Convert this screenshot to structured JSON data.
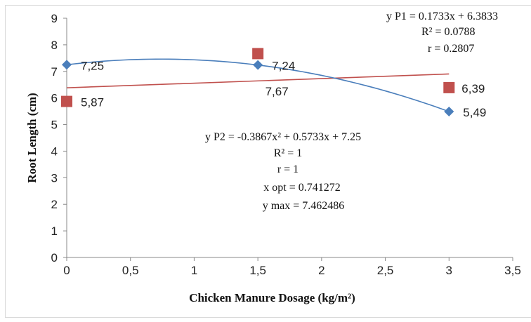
{
  "chart_data": {
    "type": "scatter",
    "xlabel": "Chicken Manure Dosage (kg/m²)",
    "ylabel": "Root Length (cm)",
    "xlim": [
      0,
      3.5
    ],
    "ylim": [
      0,
      9
    ],
    "x_ticks": [
      "0",
      "0,5",
      "1",
      "1,5",
      "2",
      "2,5",
      "3",
      "3,5"
    ],
    "y_ticks": [
      "0",
      "1",
      "2",
      "3",
      "4",
      "5",
      "6",
      "7",
      "8",
      "9"
    ],
    "grid": false,
    "series": [
      {
        "name": "P1",
        "marker": "square",
        "color": "#c0504d",
        "x": [
          0,
          1.5,
          3
        ],
        "y": [
          5.87,
          7.67,
          6.39
        ],
        "labels": [
          "5,87",
          "7,67",
          "6,39"
        ],
        "trendline": {
          "type": "linear",
          "slope": 0.1733,
          "intercept": 6.3833
        }
      },
      {
        "name": "P2",
        "marker": "diamond",
        "color": "#4a7ebb",
        "x": [
          0,
          1.5,
          3
        ],
        "y": [
          7.25,
          7.24,
          5.49
        ],
        "labels": [
          "7,25",
          "7,24",
          "5,49"
        ],
        "trendline": {
          "type": "polynomial",
          "a": -0.3867,
          "b": 0.5733,
          "c": 7.25
        }
      }
    ],
    "annotations": {
      "p1_equation": [
        "y P1 = 0.1733x + 6.3833",
        "R² = 0.0788",
        "r = 0.2807"
      ],
      "p2_equation": [
        "y P2 = -0.3867x² + 0.5733x + 7.25",
        "R² = 1",
        "r = 1",
        "x opt = 0.741272",
        "y max = 7.462486"
      ]
    }
  }
}
